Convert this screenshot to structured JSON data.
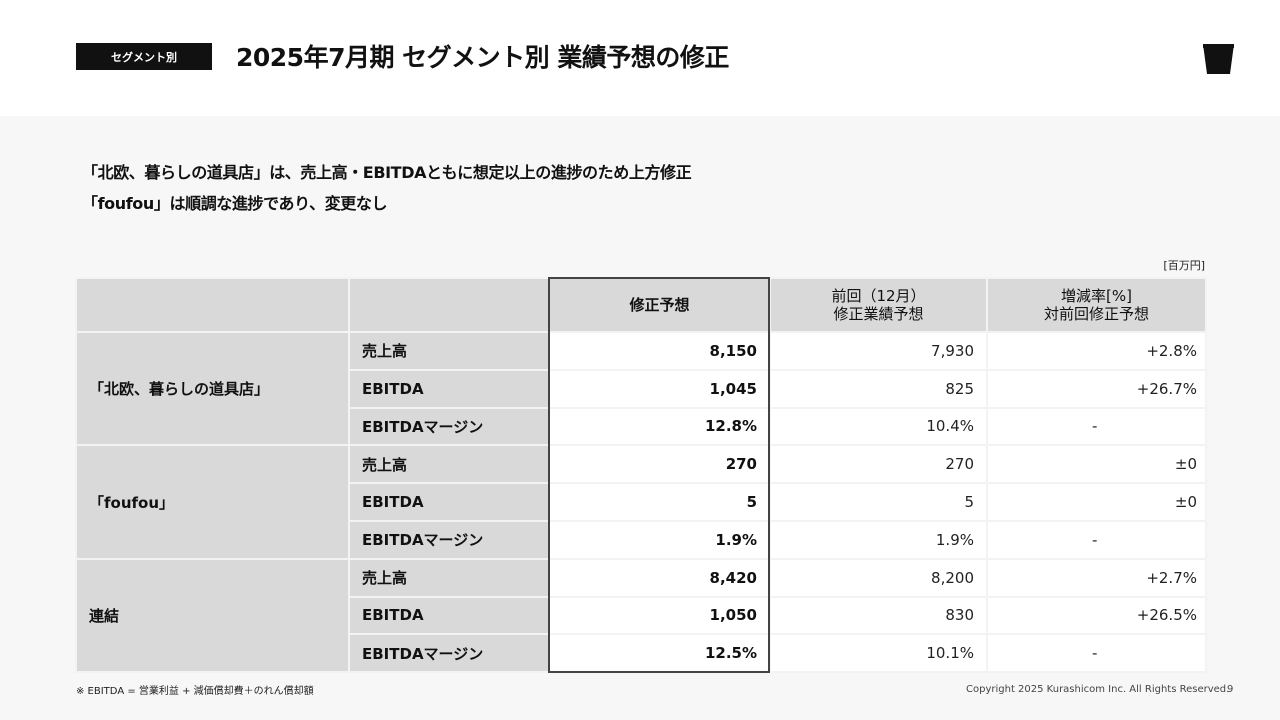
{
  "header": {
    "tag": "セグメント別",
    "title": "2025年7月期 セグメント別 業績予想の修正"
  },
  "lead": {
    "line1": "「北欧、暮らしの道具店」は、売上高・EBITDAともに想定以上の進捗のため上方修正",
    "line2": "「foufou」は順調な進捗であり、変更なし"
  },
  "table": {
    "unit": "[百万円]",
    "columns": {
      "revised": "修正予想",
      "previous_line1": "前回（12月）",
      "previous_line2": "修正業績予想",
      "rate_line1": "増減率[%]",
      "rate_line2": "対前回修正予想"
    },
    "segments": [
      {
        "name": "「北欧、暮らしの道具店」",
        "rows": [
          {
            "metric": "売上高",
            "revised": "8,150",
            "previous": "7,930",
            "rate": "+2.8%"
          },
          {
            "metric": "EBITDA",
            "revised": "1,045",
            "previous": "825",
            "rate": "+26.7%"
          },
          {
            "metric": "EBITDAマージン",
            "revised": "12.8%",
            "previous": "10.4%",
            "rate": "-"
          }
        ]
      },
      {
        "name": "「foufou」",
        "rows": [
          {
            "metric": "売上高",
            "revised": "270",
            "previous": "270",
            "rate": "±0"
          },
          {
            "metric": "EBITDA",
            "revised": "5",
            "previous": "5",
            "rate": "±0"
          },
          {
            "metric": "EBITDAマージン",
            "revised": "1.9%",
            "previous": "1.9%",
            "rate": "-"
          }
        ]
      },
      {
        "name": "連結",
        "rows": [
          {
            "metric": "売上高",
            "revised": "8,420",
            "previous": "8,200",
            "rate": "+2.7%"
          },
          {
            "metric": "EBITDA",
            "revised": "1,050",
            "previous": "830",
            "rate": "+26.5%"
          },
          {
            "metric": "EBITDAマージン",
            "revised": "12.5%",
            "previous": "10.1%",
            "rate": "-"
          }
        ]
      }
    ]
  },
  "footer": {
    "note": "※ EBITDA = 営業利益 + 減価償却費＋のれん償却額",
    "copyright": "Copyright 2025 Kurashicom Inc. All Rights Reserved.",
    "page": "9"
  },
  "icons": {
    "logo": "cup-logo-icon"
  },
  "colors": {
    "tag_bg": "#111111",
    "header_cell": "#d9d9d9",
    "highlight_border": "#444444"
  }
}
